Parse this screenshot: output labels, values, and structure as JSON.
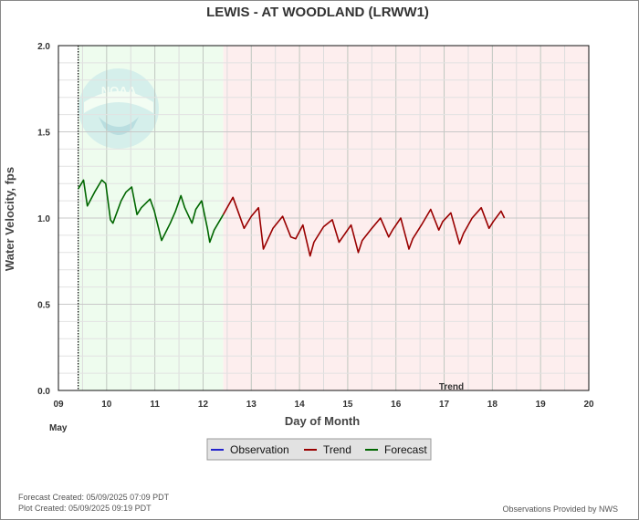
{
  "chart_data": {
    "type": "line",
    "title": "LEWIS - AT WOODLAND  (LRWW1)",
    "xlabel": "Day of Month",
    "ylabel": "Water Velocity, fps",
    "month_label": "May",
    "xlim": [
      9,
      20
    ],
    "ylim": [
      0,
      2
    ],
    "x_tick_labels": [
      "09",
      "10",
      "11",
      "12",
      "13",
      "14",
      "15",
      "16",
      "17",
      "18",
      "19",
      "20"
    ],
    "y_tick_labels": [
      "0.0",
      "0.5",
      "1.0",
      "1.5",
      "2.0"
    ],
    "region_label": "Trend",
    "regions": [
      {
        "name": "Forecast",
        "x0": 9.41,
        "x1": 12.42,
        "color": "#eefcee"
      },
      {
        "name": "Trend",
        "x0": 12.42,
        "x1": 20,
        "color": "#fdeeee"
      }
    ],
    "current_time_x": 9.41,
    "series": [
      {
        "name": "Observation",
        "color": "#2222cc",
        "x": [],
        "y": []
      },
      {
        "name": "Forecast",
        "color": "#006600",
        "x": [
          9.41,
          9.52,
          9.6,
          9.75,
          9.9,
          9.98,
          10.08,
          10.13,
          10.3,
          10.4,
          10.52,
          10.63,
          10.72,
          10.9,
          10.99,
          11.14,
          11.32,
          11.43,
          11.54,
          11.62,
          11.77,
          11.85,
          11.97,
          12.09,
          12.14,
          12.23,
          12.42
        ],
        "y": [
          1.17,
          1.22,
          1.07,
          1.15,
          1.22,
          1.2,
          0.99,
          0.97,
          1.1,
          1.15,
          1.18,
          1.02,
          1.06,
          1.11,
          1.04,
          0.87,
          0.97,
          1.04,
          1.13,
          1.06,
          0.97,
          1.05,
          1.1,
          0.94,
          0.86,
          0.93,
          1.02
        ]
      },
      {
        "name": "Trend",
        "color": "#990000",
        "x": [
          12.42,
          12.62,
          12.85,
          13.0,
          13.15,
          13.25,
          13.45,
          13.65,
          13.82,
          13.92,
          14.07,
          14.22,
          14.3,
          14.5,
          14.68,
          14.82,
          14.92,
          15.07,
          15.22,
          15.3,
          15.5,
          15.68,
          15.85,
          15.93,
          16.1,
          16.27,
          16.35,
          16.53,
          16.72,
          16.89,
          16.97,
          17.14,
          17.32,
          17.4,
          17.58,
          17.77,
          17.93,
          18.02,
          18.18,
          18.25
        ],
        "y": [
          1.02,
          1.12,
          0.94,
          1.01,
          1.06,
          0.82,
          0.94,
          1.01,
          0.89,
          0.88,
          0.96,
          0.78,
          0.86,
          0.95,
          0.99,
          0.86,
          0.9,
          0.96,
          0.8,
          0.87,
          0.94,
          1.0,
          0.89,
          0.93,
          1.0,
          0.82,
          0.88,
          0.96,
          1.05,
          0.93,
          0.98,
          1.03,
          0.85,
          0.91,
          1.0,
          1.06,
          0.94,
          0.98,
          1.04,
          1.0
        ]
      }
    ],
    "legend": {
      "position": "bottom",
      "entries": [
        {
          "label": "Observation",
          "color": "#2222cc"
        },
        {
          "label": "Trend",
          "color": "#990000"
        },
        {
          "label": "Forecast",
          "color": "#006600"
        }
      ]
    },
    "grid": true,
    "logo_text": "NOAA"
  },
  "footer": {
    "forecast_created": "Forecast Created: 05/09/2025 07:09 PDT",
    "plot_created": "Plot Created: 05/09/2025 09:19 PDT",
    "credit": "Observations Provided by NWS"
  }
}
